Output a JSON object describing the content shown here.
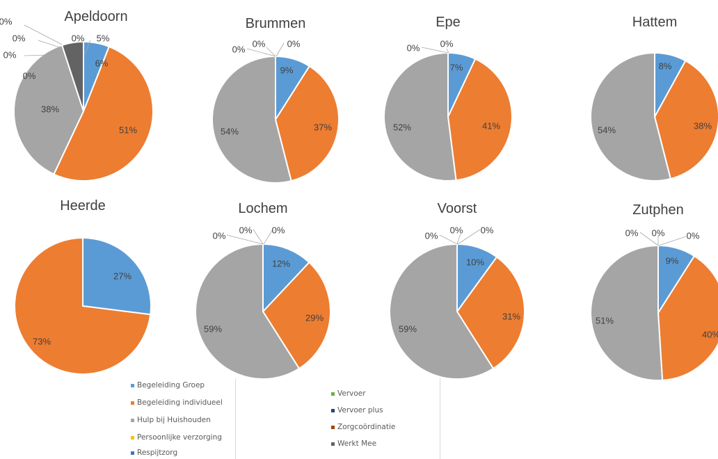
{
  "colors": {
    "Begeleiding Groep": "#5b9bd5",
    "Begeleiding individueel": "#ed7d31",
    "Hulp bij Huishouden": "#a5a5a5",
    "Persoonlijke verzorging": "#ffc000",
    "Respijtzorg": "#4472c4",
    "Vervoer": "#70ad47",
    "Vervoer plus": "#264478",
    "Zorgcoördinatie": "#9e480e",
    "Werkt Mee": "#636363"
  },
  "legend": {
    "left": [
      "Begeleiding Groep",
      "Begeleiding individueel",
      "Hulp bij Huishouden",
      "Persoonlijke verzorging",
      "Respijtzorg"
    ],
    "right": [
      "Vervoer",
      "Vervoer plus",
      "Zorgcoördinatie",
      "Werkt Mee"
    ]
  },
  "chart_data": [
    {
      "type": "pie",
      "title": "Apeldoorn",
      "slices": [
        {
          "category": "Begeleiding Groep",
          "value": 6,
          "label": "6%"
        },
        {
          "category": "Begeleiding individueel",
          "value": 51,
          "label": "51%"
        },
        {
          "category": "Hulp bij Huishouden",
          "value": 38,
          "label": "38%"
        },
        {
          "category": "Persoonlijke verzorging",
          "value": 0,
          "label": "0%"
        },
        {
          "category": "Respijtzorg",
          "value": 0,
          "label": "0%"
        },
        {
          "category": "Vervoer",
          "value": 0,
          "label": "0%"
        },
        {
          "category": "Vervoer plus",
          "value": 0,
          "label": "0%"
        },
        {
          "category": "Zorgcoördinatie",
          "value": 0,
          "label": "0%"
        },
        {
          "category": "Werkt Mee",
          "value": 5,
          "label": "5%"
        }
      ]
    },
    {
      "type": "pie",
      "title": "Brummen",
      "slices": [
        {
          "category": "Begeleiding Groep",
          "value": 9,
          "label": "9%"
        },
        {
          "category": "Begeleiding individueel",
          "value": 37,
          "label": "37%"
        },
        {
          "category": "Hulp bij Huishouden",
          "value": 54,
          "label": "54%"
        },
        {
          "category": "Persoonlijke verzorging",
          "value": 0,
          "label": "0%"
        },
        {
          "category": "Respijtzorg",
          "value": 0,
          "label": "0%"
        },
        {
          "category": "Vervoer",
          "value": 0,
          "label": "0%"
        }
      ]
    },
    {
      "type": "pie",
      "title": "Epe",
      "slices": [
        {
          "category": "Begeleiding Groep",
          "value": 7,
          "label": "7%"
        },
        {
          "category": "Begeleiding individueel",
          "value": 41,
          "label": "41%"
        },
        {
          "category": "Hulp bij Huishouden",
          "value": 52,
          "label": "52%"
        },
        {
          "category": "Persoonlijke verzorging",
          "value": 0,
          "label": "0%"
        },
        {
          "category": "Respijtzorg",
          "value": 0,
          "label": "0%"
        }
      ]
    },
    {
      "type": "pie",
      "title": "Hattem",
      "slices": [
        {
          "category": "Begeleiding Groep",
          "value": 8,
          "label": "8%"
        },
        {
          "category": "Begeleiding individueel",
          "value": 38,
          "label": "38%"
        },
        {
          "category": "Hulp bij Huishouden",
          "value": 54,
          "label": "54%"
        }
      ]
    },
    {
      "type": "pie",
      "title": "Heerde",
      "slices": [
        {
          "category": "Begeleiding Groep",
          "value": 27,
          "label": "27%"
        },
        {
          "category": "Begeleiding individueel",
          "value": 73,
          "label": "73%"
        }
      ]
    },
    {
      "type": "pie",
      "title": "Lochem",
      "slices": [
        {
          "category": "Begeleiding Groep",
          "value": 12,
          "label": "12%"
        },
        {
          "category": "Begeleiding individueel",
          "value": 29,
          "label": "29%"
        },
        {
          "category": "Hulp bij Huishouden",
          "value": 59,
          "label": "59%"
        },
        {
          "category": "Persoonlijke verzorging",
          "value": 0,
          "label": "0%"
        },
        {
          "category": "Respijtzorg",
          "value": 0,
          "label": "0%"
        },
        {
          "category": "Vervoer",
          "value": 0,
          "label": "0%"
        }
      ]
    },
    {
      "type": "pie",
      "title": "Voorst",
      "slices": [
        {
          "category": "Begeleiding Groep",
          "value": 10,
          "label": "10%"
        },
        {
          "category": "Begeleiding individueel",
          "value": 31,
          "label": "31%"
        },
        {
          "category": "Hulp bij Huishouden",
          "value": 59,
          "label": "59%"
        },
        {
          "category": "Persoonlijke verzorging",
          "value": 0,
          "label": "0%"
        },
        {
          "category": "Respijtzorg",
          "value": 0,
          "label": "0%"
        },
        {
          "category": "Vervoer",
          "value": 0,
          "label": "0%"
        }
      ]
    },
    {
      "type": "pie",
      "title": "Zutphen",
      "slices": [
        {
          "category": "Begeleiding Groep",
          "value": 9,
          "label": "9%"
        },
        {
          "category": "Begeleiding individueel",
          "value": 40,
          "label": "40%"
        },
        {
          "category": "Hulp bij Huishouden",
          "value": 51,
          "label": "51%"
        },
        {
          "category": "Persoonlijke verzorging",
          "value": 0,
          "label": "0%"
        },
        {
          "category": "Respijtzorg",
          "value": 0,
          "label": "0%"
        },
        {
          "category": "Vervoer",
          "value": 0,
          "label": "0%"
        }
      ]
    }
  ]
}
